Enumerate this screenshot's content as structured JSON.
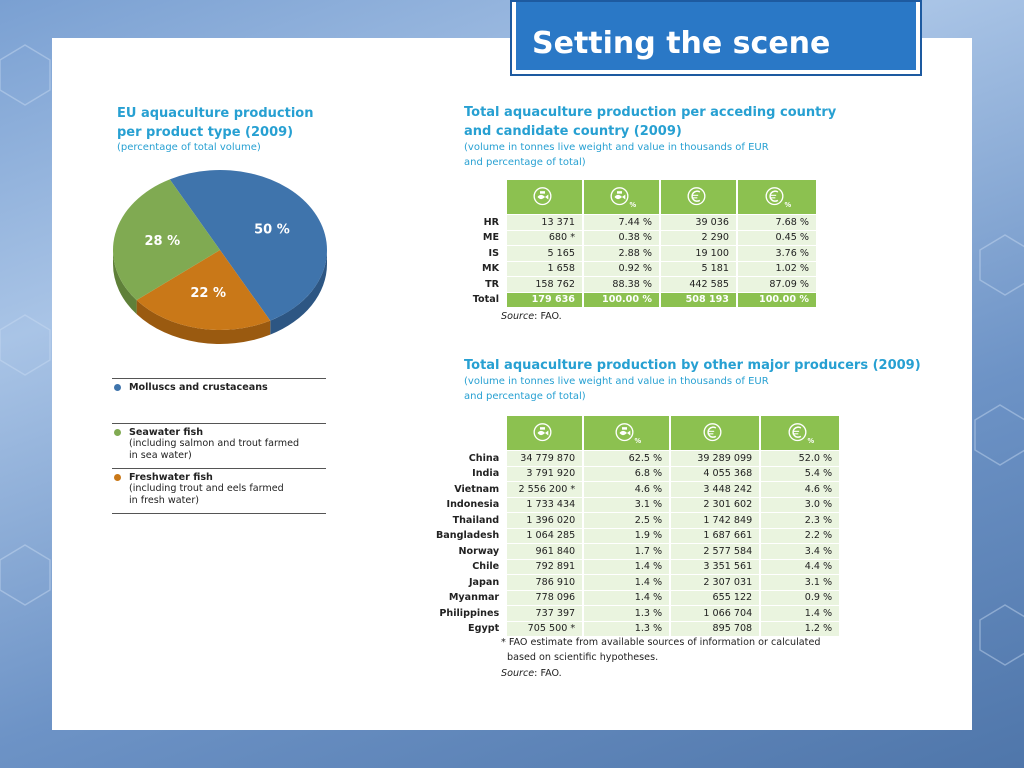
{
  "slide_title": "Setting the scene",
  "pie": {
    "title_line1": "EU aquaculture production",
    "title_line2": "per product type (2009)",
    "subtitle": "(percentage of total volume)",
    "colors": {
      "molluscs": "#3f74ac",
      "seawater": "#80aa52",
      "freshwater": "#c97818"
    },
    "legend": [
      {
        "title": "Molluscs and crustaceans",
        "sub1": "",
        "sub2": ""
      },
      {
        "title": "Seawater fish",
        "sub1": "(including salmon and trout farmed",
        "sub2": "in sea water)"
      },
      {
        "title": "Freshwater fish",
        "sub1": "(including trout and eels farmed",
        "sub2": "in fresh water)"
      }
    ]
  },
  "chart_data": {
    "type": "pie",
    "title": "EU aquaculture production per product type (2009)",
    "categories": [
      "Molluscs and crustaceans",
      "Freshwater fish",
      "Seawater fish"
    ],
    "values": [
      50,
      22,
      28
    ],
    "labels": [
      "50 %",
      "22 %",
      "28 %"
    ],
    "legend_position": "bottom"
  },
  "table1": {
    "title_line1": "Total aquaculture production per acceding country",
    "title_line2": "and candidate country (2009)",
    "sub_line1": "(volume in tonnes live weight and value in thousands of EUR",
    "sub_line2": "and percentage of total)",
    "header_icons": [
      "fish-volume-icon",
      "fish-volume-percent-icon",
      "euro-icon",
      "euro-percent-icon"
    ],
    "header_pct": "%",
    "rows": [
      {
        "c": "HR",
        "v": "13 371",
        "vp": "7.44 %",
        "e": "39 036",
        "ep": "7.68 %"
      },
      {
        "c": "ME",
        "v": "680 *",
        "vp": "0.38 %",
        "e": "2 290",
        "ep": "0.45 %"
      },
      {
        "c": "IS",
        "v": "5 165",
        "vp": "2.88 %",
        "e": "19 100",
        "ep": "3.76 %"
      },
      {
        "c": "MK",
        "v": "1 658",
        "vp": "0.92 %",
        "e": "5 181",
        "ep": "1.02 %"
      },
      {
        "c": "TR",
        "v": "158 762",
        "vp": "88.38 %",
        "e": "442 585",
        "ep": "87.09 %"
      }
    ],
    "total": {
      "c": "Total",
      "v": "179 636",
      "vp": "100.00 %",
      "e": "508 193",
      "ep": "100.00 %"
    },
    "source_label": "Source",
    "source_text": ": FAO."
  },
  "table2": {
    "title": "Total aquaculture production by other major producers (2009)",
    "sub_line1": "(volume in tonnes live weight and value in thousands of EUR",
    "sub_line2": "and percentage of total)",
    "header_pct": "%",
    "rows": [
      {
        "c": "China",
        "v": "34 779 870",
        "vp": "62.5 %",
        "e": "39 289 099",
        "ep": "52.0 %"
      },
      {
        "c": "India",
        "v": "3 791 920",
        "vp": "6.8 %",
        "e": "4 055 368",
        "ep": "5.4 %"
      },
      {
        "c": "Vietnam",
        "v": "2 556 200 *",
        "vp": "4.6 %",
        "e": "3 448 242",
        "ep": "4.6 %"
      },
      {
        "c": "Indonesia",
        "v": "1 733 434",
        "vp": "3.1 %",
        "e": "2 301 602",
        "ep": "3.0 %"
      },
      {
        "c": "Thailand",
        "v": "1 396 020",
        "vp": "2.5 %",
        "e": "1 742 849",
        "ep": "2.3 %"
      },
      {
        "c": "Bangladesh",
        "v": "1 064 285",
        "vp": "1.9 %",
        "e": "1 687 661",
        "ep": "2.2 %"
      },
      {
        "c": "Norway",
        "v": "961 840",
        "vp": "1.7 %",
        "e": "2 577 584",
        "ep": "3.4 %"
      },
      {
        "c": "Chile",
        "v": "792 891",
        "vp": "1.4 %",
        "e": "3 351 561",
        "ep": "4.4 %"
      },
      {
        "c": "Japan",
        "v": "786 910",
        "vp": "1.4 %",
        "e": "2 307 031",
        "ep": "3.1 %"
      },
      {
        "c": "Myanmar",
        "v": "778 096",
        "vp": "1.4 %",
        "e": "655 122",
        "ep": "0.9 %"
      },
      {
        "c": "Philippines",
        "v": "737 397",
        "vp": "1.3 %",
        "e": "1 066 704",
        "ep": "1.4 %"
      },
      {
        "c": "Egypt",
        "v": "705 500 *",
        "vp": "1.3 %",
        "e": "895 708",
        "ep": "1.2 %"
      }
    ],
    "note_line1": "* FAO estimate from available sources of information or calculated",
    "note_line2": "based on scientific hypotheses.",
    "source_label": "Source",
    "source_text": ": FAO."
  }
}
